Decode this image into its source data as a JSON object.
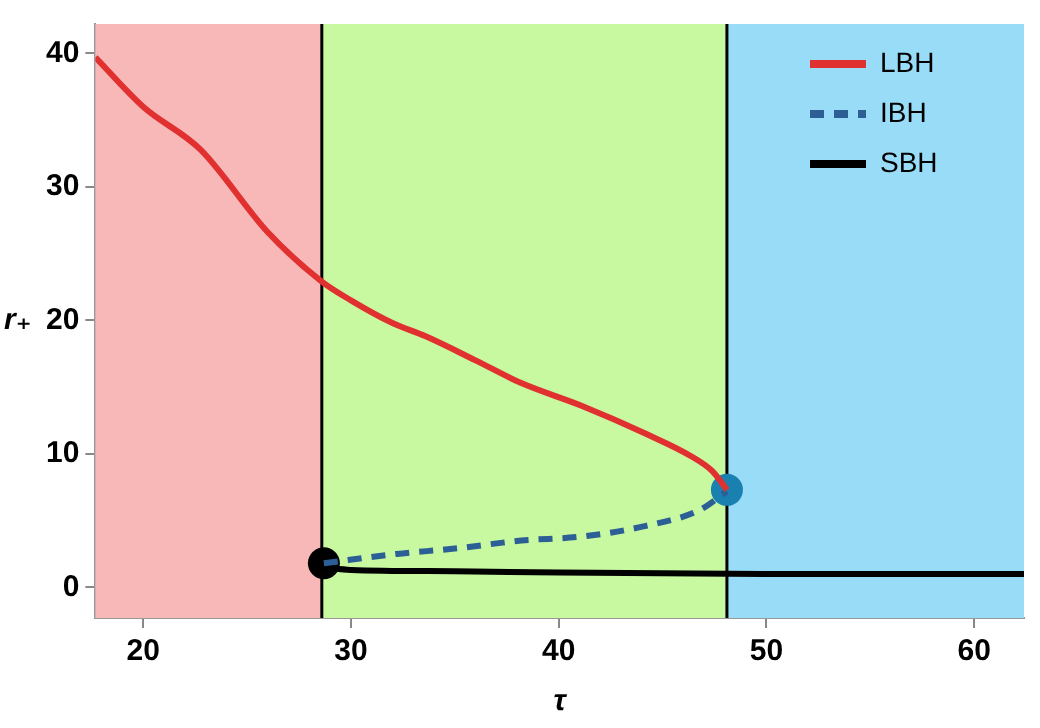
{
  "chart_data": {
    "type": "line",
    "xlabel": "τ",
    "ylabel": "r₊",
    "xlim": [
      17.7,
      62.4
    ],
    "ylim": [
      -2.3,
      42.2
    ],
    "xticks": [
      20,
      30,
      40,
      50,
      60
    ],
    "yticks": [
      0,
      10,
      20,
      30,
      40
    ],
    "legend": "top right",
    "marker": "none",
    "bands": [
      {
        "axis": "x",
        "from": 17.7,
        "to": 28.6,
        "color": "#f8b8b8"
      },
      {
        "axis": "x",
        "from": 28.6,
        "to": 48.1,
        "color": "#c8f8a0"
      },
      {
        "axis": "x",
        "from": 48.1,
        "to": 62.4,
        "color": "#98dcf8"
      }
    ],
    "ref_lines": [
      {
        "axis": "x",
        "value": 28.6,
        "color": "#000000"
      },
      {
        "axis": "x",
        "value": 48.1,
        "color": "#000000"
      }
    ],
    "series": [
      {
        "name": "LBH",
        "color": "#e03030",
        "line_style": "solid",
        "x": [
          17.7,
          20,
          22.75,
          26,
          28.6,
          30,
          32,
          33.6,
          36,
          38.2,
          41.1,
          44.2,
          46.4,
          47.4,
          48.1
        ],
        "values": [
          39.7,
          36,
          32.8,
          26.6,
          22.9,
          21.5,
          19.8,
          18.8,
          17,
          15.3,
          13.6,
          11.5,
          9.8,
          8.7,
          7.3
        ]
      },
      {
        "name": "IBH",
        "color": "#2b5f95",
        "line_style": "dashed",
        "x": [
          28.7,
          32.2,
          35,
          38.2,
          41.1,
          44.2,
          46.8,
          48.1
        ],
        "values": [
          1.8,
          2.5,
          2.9,
          3.5,
          3.8,
          4.6,
          5.8,
          7.2
        ]
      },
      {
        "name": "SBH",
        "color": "#000000",
        "line_style": "solid",
        "x": [
          28.7,
          30,
          35,
          40,
          50,
          62.4
        ],
        "values": [
          1.5,
          1.3,
          1.2,
          1.1,
          1.0,
          1.0
        ]
      },
      {
        "type": "scatter",
        "color": "#000000",
        "marker": "circle",
        "x": [
          28.7
        ],
        "values": [
          1.8
        ]
      },
      {
        "type": "scatter",
        "color": "#1a80b0",
        "marker": "circle",
        "x": [
          48.1
        ],
        "values": [
          7.3
        ]
      }
    ]
  }
}
